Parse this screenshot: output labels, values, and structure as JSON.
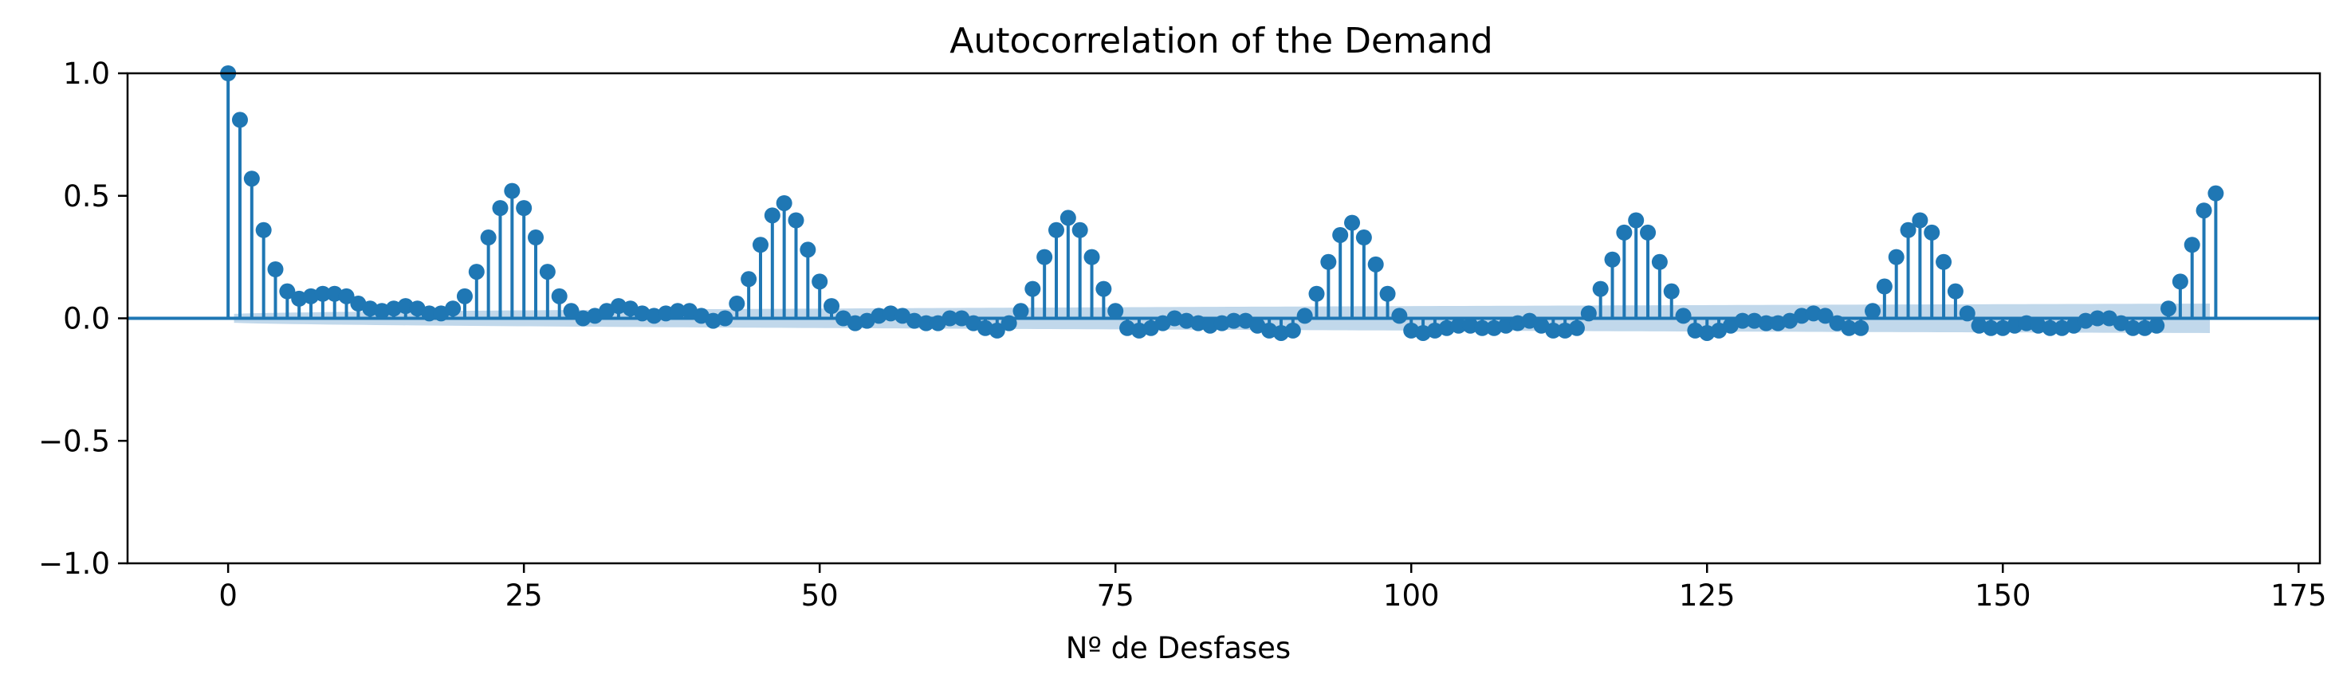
{
  "chart_data": {
    "type": "stem",
    "title": "Autocorrelation of the Demand",
    "xlabel": "Nº de Desfases",
    "ylabel": "",
    "xlim": [
      -8.5,
      176.8
    ],
    "ylim": [
      -1.0,
      1.0
    ],
    "xticks": [
      "0",
      "25",
      "50",
      "75",
      "100",
      "125",
      "150",
      "175"
    ],
    "yticks": [
      "1.0",
      "0.5",
      "0.0",
      "−0.5",
      "−1.0"
    ],
    "grid": false,
    "colors": {
      "stem": "#1f77b4",
      "band": "#a6c8e3",
      "axis": "#000000"
    },
    "lags_start": 0,
    "lags_end": 168,
    "acf_values": [
      1.0,
      0.81,
      0.57,
      0.36,
      0.2,
      0.11,
      0.08,
      0.09,
      0.1,
      0.1,
      0.09,
      0.06,
      0.04,
      0.03,
      0.04,
      0.05,
      0.04,
      0.02,
      0.02,
      0.04,
      0.09,
      0.19,
      0.33,
      0.45,
      0.52,
      0.45,
      0.33,
      0.19,
      0.09,
      0.03,
      0.0,
      0.01,
      0.03,
      0.05,
      0.04,
      0.02,
      0.01,
      0.02,
      0.03,
      0.03,
      0.01,
      -0.01,
      0.0,
      0.06,
      0.16,
      0.3,
      0.42,
      0.47,
      0.4,
      0.28,
      0.15,
      0.05,
      0.0,
      -0.02,
      -0.01,
      0.01,
      0.02,
      0.01,
      -0.01,
      -0.02,
      -0.02,
      0.0,
      0.0,
      -0.02,
      -0.04,
      -0.05,
      -0.02,
      0.03,
      0.12,
      0.25,
      0.36,
      0.41,
      0.36,
      0.25,
      0.12,
      0.03,
      -0.04,
      -0.05,
      -0.04,
      -0.02,
      0.0,
      -0.01,
      -0.02,
      -0.03,
      -0.02,
      -0.01,
      -0.01,
      -0.03,
      -0.05,
      -0.06,
      -0.05,
      0.01,
      0.1,
      0.23,
      0.34,
      0.39,
      0.33,
      0.22,
      0.1,
      0.01,
      -0.05,
      -0.06,
      -0.05,
      -0.04,
      -0.03,
      -0.03,
      -0.04,
      -0.04,
      -0.03,
      -0.02,
      -0.01,
      -0.03,
      -0.05,
      -0.05,
      -0.04,
      0.02,
      0.12,
      0.24,
      0.35,
      0.4,
      0.35,
      0.23,
      0.11,
      0.01,
      -0.05,
      -0.06,
      -0.05,
      -0.03,
      -0.01,
      -0.01,
      -0.02,
      -0.02,
      -0.01,
      0.01,
      0.02,
      0.01,
      -0.02,
      -0.04,
      -0.04,
      0.03,
      0.13,
      0.25,
      0.36,
      0.4,
      0.35,
      0.23,
      0.11,
      0.02,
      -0.03,
      -0.04,
      -0.04,
      -0.03,
      -0.02,
      -0.03,
      -0.04,
      -0.04,
      -0.03,
      -0.01,
      0.0,
      0.0,
      -0.02,
      -0.04,
      -0.04,
      -0.03,
      0.04,
      0.15,
      0.3,
      0.44,
      0.51
    ],
    "confidence_band_end": 0.06
  }
}
